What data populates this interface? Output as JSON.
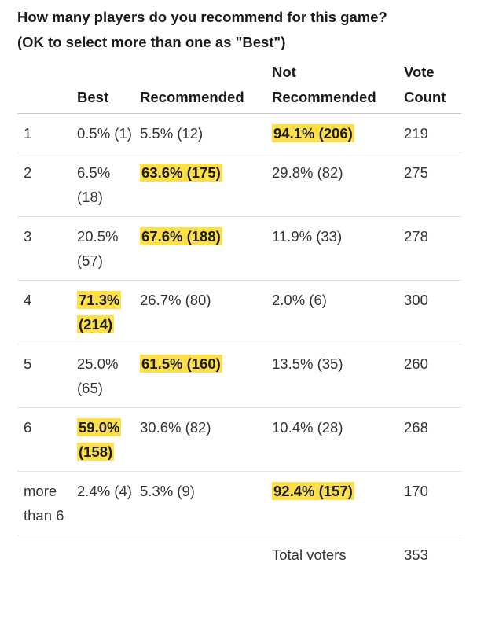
{
  "title_line1": "How many players do you recommend for this game?",
  "title_line2": "(OK to select more than one as \"Best\")",
  "headers": {
    "players": "",
    "best": "Best",
    "recommended": "Recommended",
    "not_recommended": "Not Recommended",
    "vote_count": "Vote Count"
  },
  "rows": [
    {
      "players": "1",
      "best": "0.5% (1)",
      "recommended": "5.5% (12)",
      "not_recommended": "94.1% (206)",
      "vote_count": "219",
      "winner": "not_recommended"
    },
    {
      "players": "2",
      "best": "6.5% (18)",
      "recommended": "63.6% (175)",
      "not_recommended": "29.8% (82)",
      "vote_count": "275",
      "winner": "recommended"
    },
    {
      "players": "3",
      "best": "20.5% (57)",
      "recommended": "67.6% (188)",
      "not_recommended": "11.9% (33)",
      "vote_count": "278",
      "winner": "recommended"
    },
    {
      "players": "4",
      "best": "71.3% (214)",
      "recommended": "26.7% (80)",
      "not_recommended": "2.0% (6)",
      "vote_count": "300",
      "winner": "best"
    },
    {
      "players": "5",
      "best": "25.0% (65)",
      "recommended": "61.5% (160)",
      "not_recommended": "13.5% (35)",
      "vote_count": "260",
      "winner": "recommended"
    },
    {
      "players": "6",
      "best": "59.0% (158)",
      "recommended": "30.6% (82)",
      "not_recommended": "10.4% (28)",
      "vote_count": "268",
      "winner": "best"
    },
    {
      "players": "more than 6",
      "best": "2.4% (4)",
      "recommended": "5.3% (9)",
      "not_recommended": "92.4% (157)",
      "vote_count": "170",
      "winner": "not_recommended"
    }
  ],
  "total": {
    "label": "Total voters",
    "value": "353"
  },
  "colors": {
    "highlight": "#fde047"
  }
}
